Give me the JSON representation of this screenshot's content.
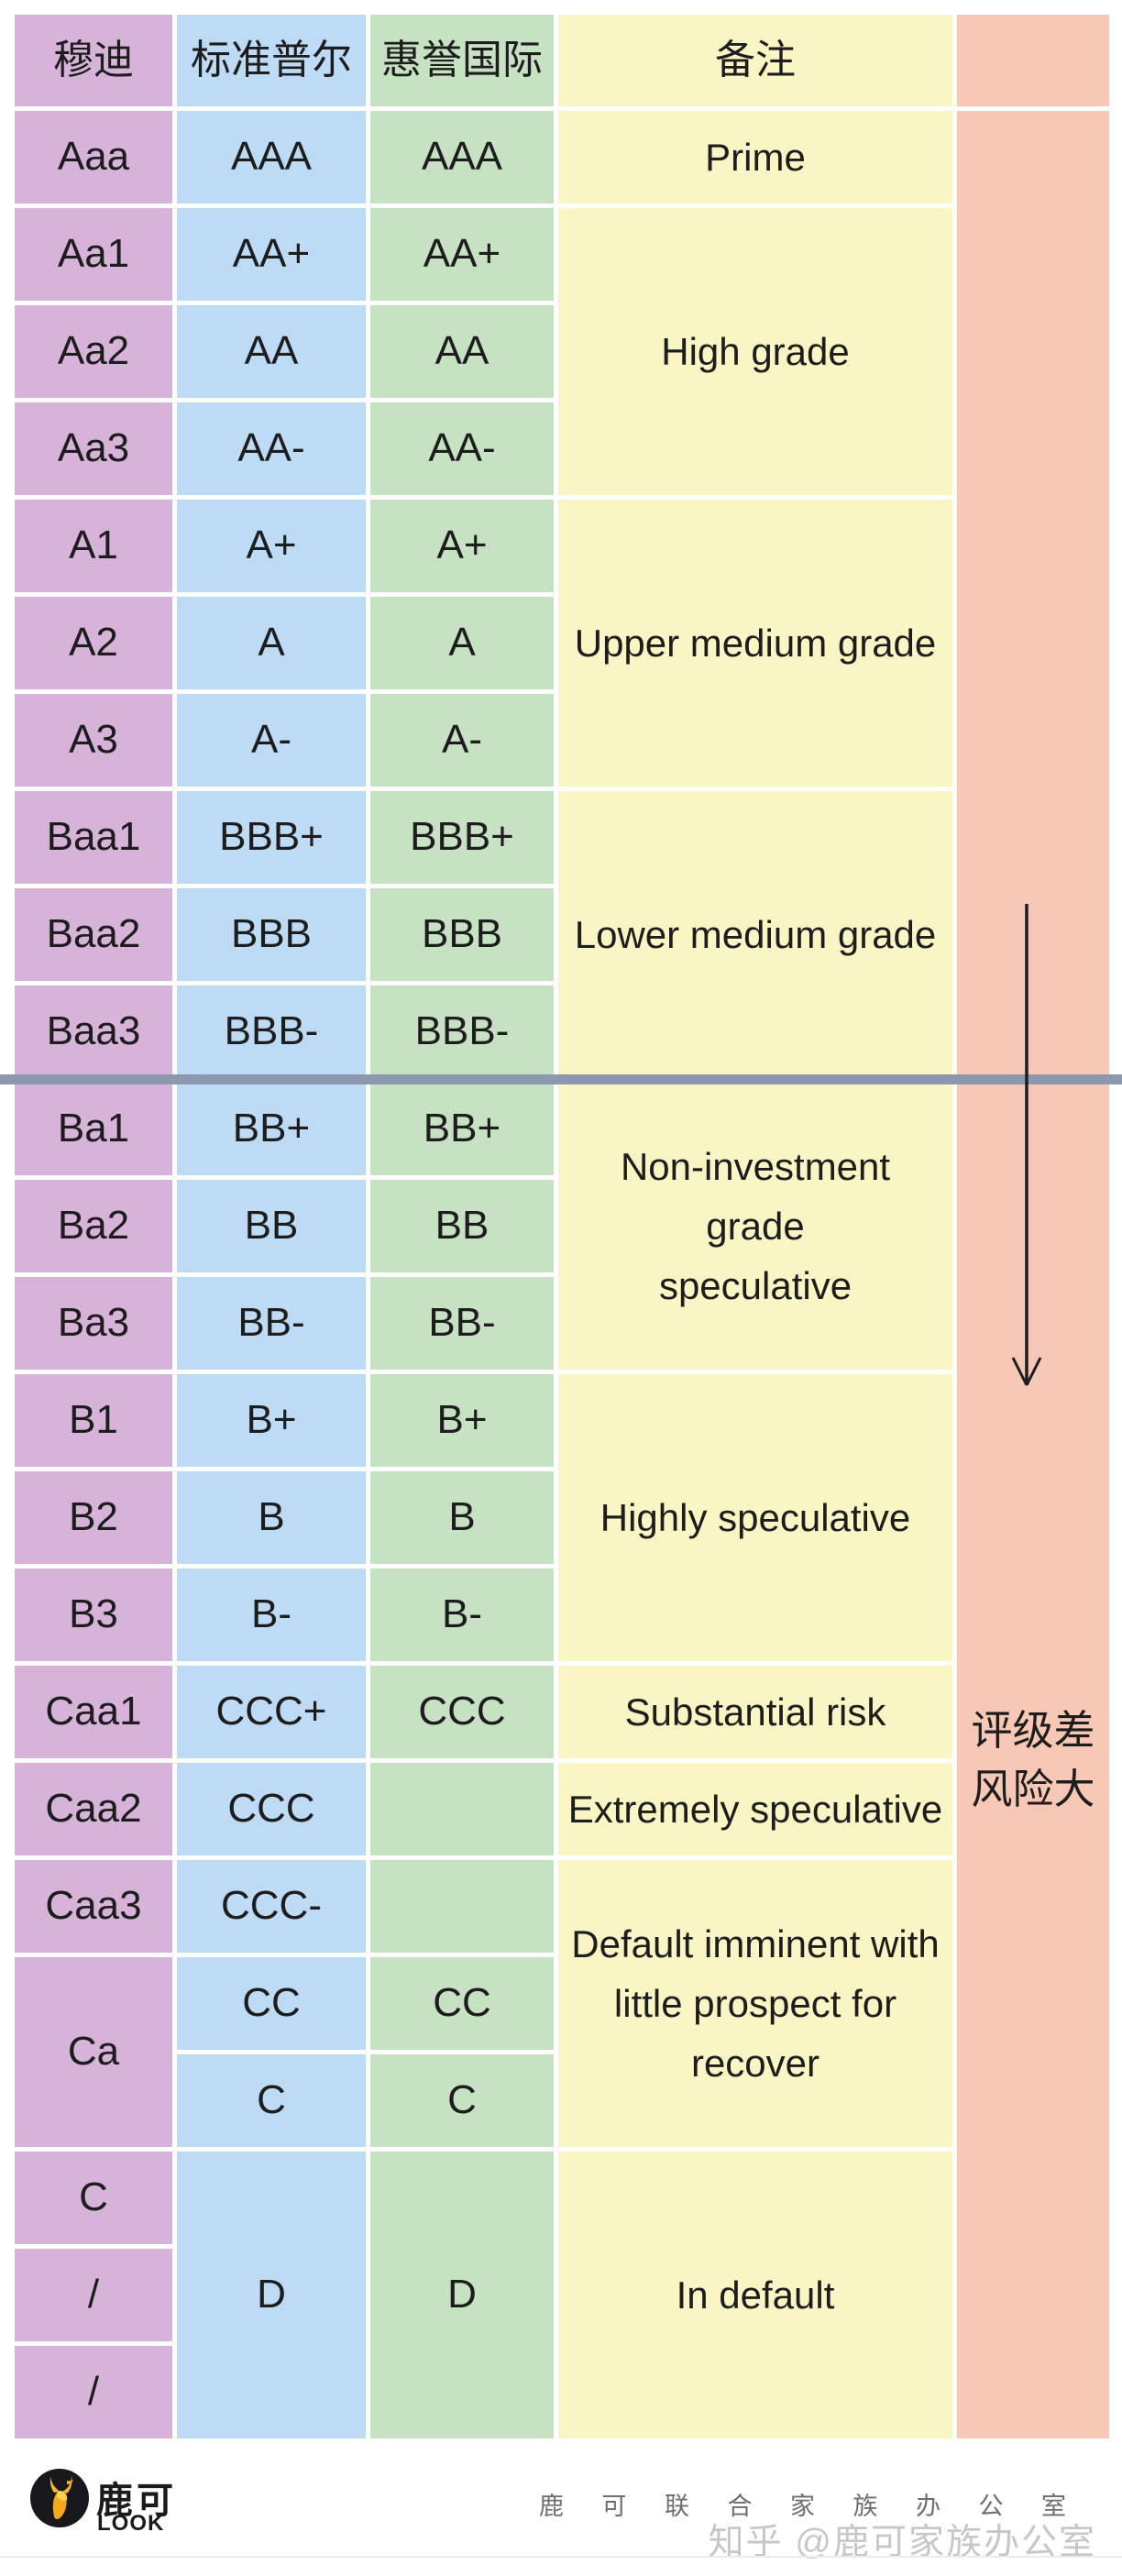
{
  "palette": {
    "moody": "#d7b3d9",
    "sp": "#bddbf4",
    "fitch": "#c7e2c2",
    "note": "#faf5c5",
    "risk": "#f8c8b6",
    "divider": "#8b98ae",
    "arrow": "#1d1d1d",
    "text": "#1d1d1d"
  },
  "table": {
    "columns": [
      {
        "key": "moody",
        "header": "穆迪"
      },
      {
        "key": "sp",
        "header": "标准普尔"
      },
      {
        "key": "fitch",
        "header": "惠誉国际"
      },
      {
        "key": "note",
        "header": "备注"
      },
      {
        "key": "risk",
        "header": ""
      }
    ],
    "moody_cells": [
      {
        "text": "Aaa",
        "rows": 1
      },
      {
        "text": "Aa1",
        "rows": 1
      },
      {
        "text": "Aa2",
        "rows": 1
      },
      {
        "text": "Aa3",
        "rows": 1
      },
      {
        "text": "A1",
        "rows": 1
      },
      {
        "text": "A2",
        "rows": 1
      },
      {
        "text": "A3",
        "rows": 1
      },
      {
        "text": "Baa1",
        "rows": 1
      },
      {
        "text": "Baa2",
        "rows": 1
      },
      {
        "text": "Baa3",
        "rows": 1
      },
      {
        "text": "Ba1",
        "rows": 1
      },
      {
        "text": "Ba2",
        "rows": 1
      },
      {
        "text": "Ba3",
        "rows": 1
      },
      {
        "text": "B1",
        "rows": 1
      },
      {
        "text": "B2",
        "rows": 1
      },
      {
        "text": "B3",
        "rows": 1
      },
      {
        "text": "Caa1",
        "rows": 1
      },
      {
        "text": "Caa2",
        "rows": 1
      },
      {
        "text": "Caa3",
        "rows": 1
      },
      {
        "text": "Ca",
        "rows": 2
      },
      {
        "text": "C",
        "rows": 1
      },
      {
        "text": "/",
        "rows": 1
      },
      {
        "text": "/",
        "rows": 1
      }
    ],
    "sp_cells": [
      {
        "text": "AAA",
        "rows": 1
      },
      {
        "text": "AA+",
        "rows": 1
      },
      {
        "text": "AA",
        "rows": 1
      },
      {
        "text": "AA-",
        "rows": 1
      },
      {
        "text": "A+",
        "rows": 1
      },
      {
        "text": "A",
        "rows": 1
      },
      {
        "text": "A-",
        "rows": 1
      },
      {
        "text": "BBB+",
        "rows": 1
      },
      {
        "text": "BBB",
        "rows": 1
      },
      {
        "text": "BBB-",
        "rows": 1
      },
      {
        "text": "BB+",
        "rows": 1
      },
      {
        "text": "BB",
        "rows": 1
      },
      {
        "text": "BB-",
        "rows": 1
      },
      {
        "text": "B+",
        "rows": 1
      },
      {
        "text": "B",
        "rows": 1
      },
      {
        "text": "B-",
        "rows": 1
      },
      {
        "text": "CCC+",
        "rows": 1
      },
      {
        "text": "CCC",
        "rows": 1
      },
      {
        "text": "CCC-",
        "rows": 1
      },
      {
        "text": "CC",
        "rows": 1
      },
      {
        "text": "C",
        "rows": 1
      },
      {
        "text": "D",
        "rows": 3
      }
    ],
    "fitch_cells": [
      {
        "text": "AAA",
        "rows": 1
      },
      {
        "text": "AA+",
        "rows": 1
      },
      {
        "text": "AA",
        "rows": 1
      },
      {
        "text": "AA-",
        "rows": 1
      },
      {
        "text": "A+",
        "rows": 1
      },
      {
        "text": "A",
        "rows": 1
      },
      {
        "text": "A-",
        "rows": 1
      },
      {
        "text": "BBB+",
        "rows": 1
      },
      {
        "text": "BBB",
        "rows": 1
      },
      {
        "text": "BBB-",
        "rows": 1
      },
      {
        "text": "BB+",
        "rows": 1
      },
      {
        "text": "BB",
        "rows": 1
      },
      {
        "text": "BB-",
        "rows": 1
      },
      {
        "text": "B+",
        "rows": 1
      },
      {
        "text": "B",
        "rows": 1
      },
      {
        "text": "B-",
        "rows": 1
      },
      {
        "text": "CCC",
        "rows": 1
      },
      {
        "text": "",
        "rows": 1
      },
      {
        "text": "",
        "rows": 1
      },
      {
        "text": "CC",
        "rows": 1
      },
      {
        "text": "C",
        "rows": 1
      },
      {
        "text": "D",
        "rows": 3
      }
    ],
    "note_cells": [
      {
        "text": "Prime",
        "rows": 1
      },
      {
        "text": "High grade",
        "rows": 3
      },
      {
        "text": "Upper medium grade",
        "rows": 3
      },
      {
        "text": "Lower medium grade",
        "rows": 3
      },
      {
        "text": "Non-investment\ngrade\nspeculative",
        "rows": 3
      },
      {
        "text": "Highly speculative",
        "rows": 3
      },
      {
        "text": "Substantial risk",
        "rows": 1
      },
      {
        "text": "Extremely speculative",
        "rows": 1
      },
      {
        "text": "Default imminent with\nlittle prospect for\nrecover",
        "rows": 3
      },
      {
        "text": "In default",
        "rows": 3
      }
    ],
    "risk_cells": [
      {
        "text": "",
        "rows": 24
      }
    ]
  },
  "risk_label": {
    "line1": "评级差",
    "line2": "风险大"
  },
  "footer": {
    "logo_cn": "鹿可",
    "logo_en": "LOOK",
    "company": "鹿 可 联 合 家 族 办 公 室",
    "watermark": "知乎 @鹿可家族办公室"
  },
  "chart_data": {
    "type": "table",
    "title": "信用评级对照表 (Credit rating scale comparison)",
    "columns": [
      "穆迪",
      "标准普尔",
      "惠誉国际",
      "备注"
    ],
    "rows": [
      [
        "Aaa",
        "AAA",
        "AAA",
        "Prime"
      ],
      [
        "Aa1",
        "AA+",
        "AA+",
        "High grade"
      ],
      [
        "Aa2",
        "AA",
        "AA",
        "High grade"
      ],
      [
        "Aa3",
        "AA-",
        "AA-",
        "High grade"
      ],
      [
        "A1",
        "A+",
        "A+",
        "Upper medium grade"
      ],
      [
        "A2",
        "A",
        "A",
        "Upper medium grade"
      ],
      [
        "A3",
        "A-",
        "A-",
        "Upper medium grade"
      ],
      [
        "Baa1",
        "BBB+",
        "BBB+",
        "Lower medium grade"
      ],
      [
        "Baa2",
        "BBB",
        "BBB",
        "Lower medium grade"
      ],
      [
        "Baa3",
        "BBB-",
        "BBB-",
        "Lower medium grade"
      ],
      [
        "Ba1",
        "BB+",
        "BB+",
        "Non-investment grade speculative"
      ],
      [
        "Ba2",
        "BB",
        "BB",
        "Non-investment grade speculative"
      ],
      [
        "Ba3",
        "BB-",
        "BB-",
        "Non-investment grade speculative"
      ],
      [
        "B1",
        "B+",
        "B+",
        "Highly speculative"
      ],
      [
        "B2",
        "B",
        "B",
        "Highly speculative"
      ],
      [
        "B3",
        "B-",
        "B-",
        "Highly speculative"
      ],
      [
        "Caa1",
        "CCC+",
        "CCC",
        "Substantial risk"
      ],
      [
        "Caa2",
        "CCC",
        "",
        "Extremely speculative"
      ],
      [
        "Caa3",
        "CCC-",
        "",
        "Default imminent with little prospect for recover"
      ],
      [
        "Ca",
        "CC",
        "CC",
        "Default imminent with little prospect for recover"
      ],
      [
        "Ca",
        "C",
        "C",
        "Default imminent with little prospect for recover"
      ],
      [
        "C",
        "D",
        "D",
        "In default"
      ],
      [
        "/",
        "D",
        "D",
        "In default"
      ],
      [
        "/",
        "D",
        "D",
        "In default"
      ]
    ],
    "annotations": [
      "评级差 风险大 (down arrow: ratings worsen, risk increases)",
      "divider line between Baa3/BBB- (investment grade) and Ba1/BB+ (speculative grade)"
    ]
  }
}
